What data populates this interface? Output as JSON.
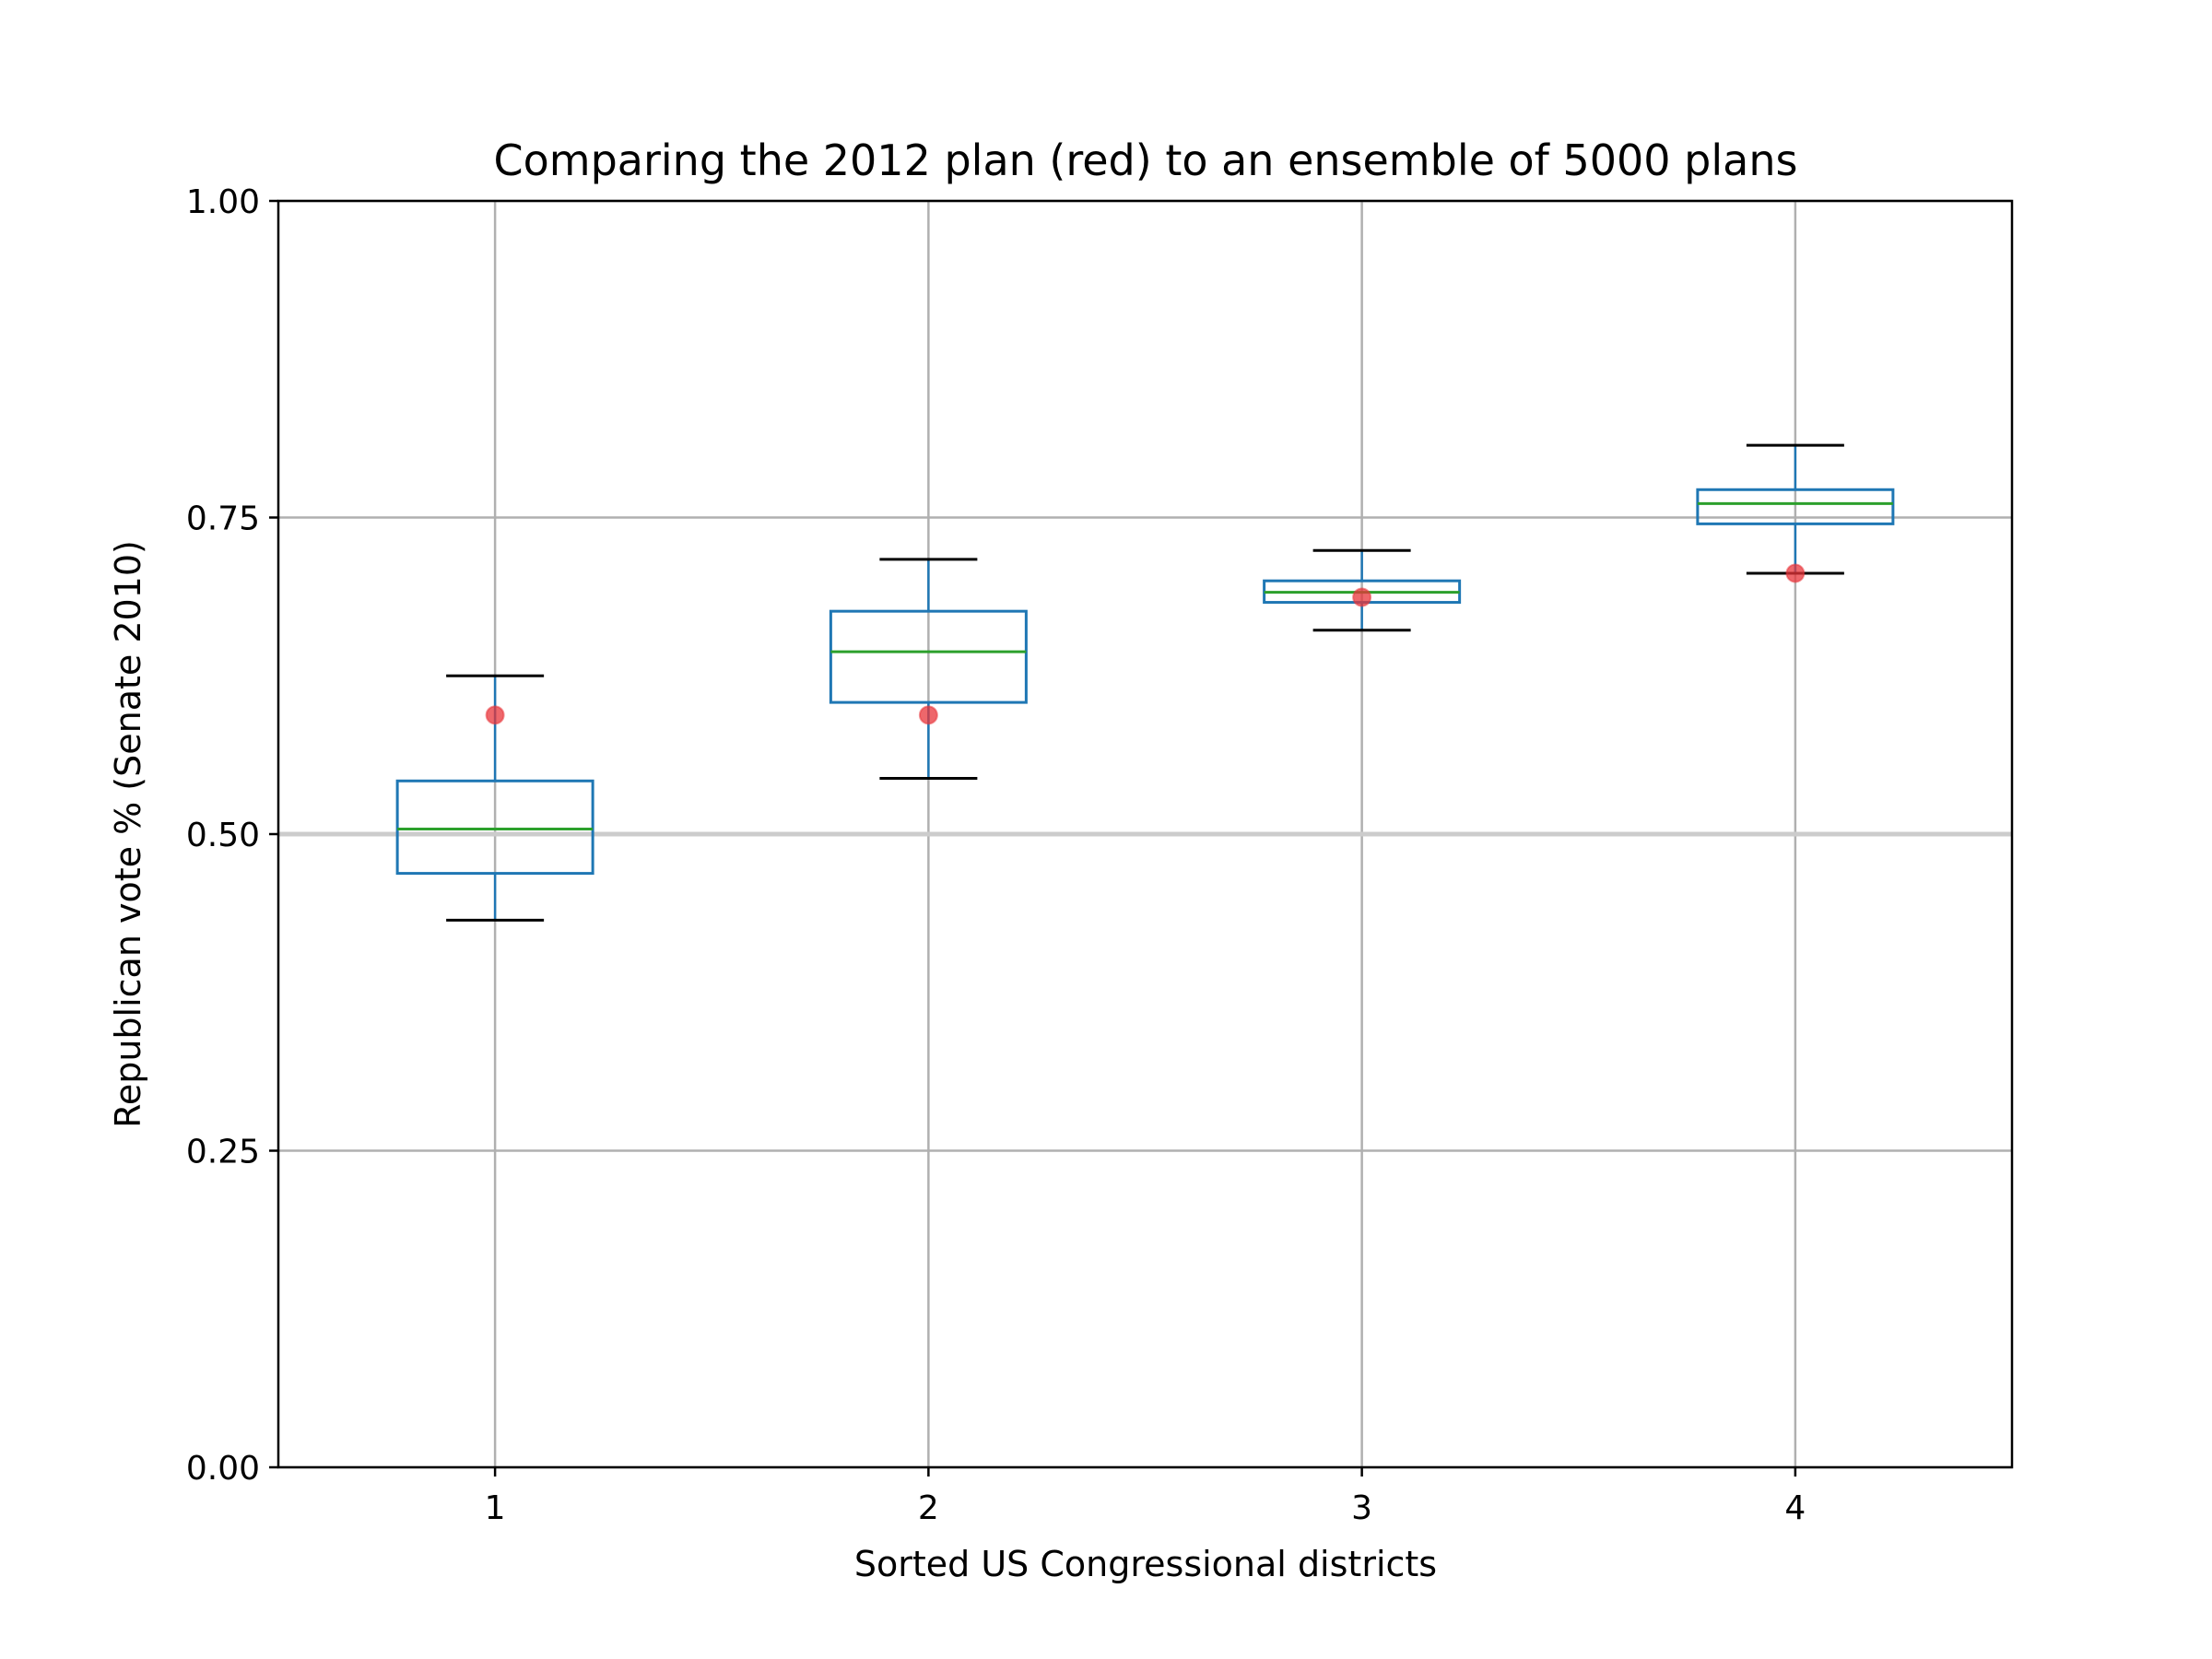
{
  "chart_data": {
    "type": "box",
    "title": "Comparing the 2012 plan (red) to an ensemble of 5000 plans",
    "xlabel": "Sorted US Congressional districts",
    "ylabel": "Republican vote % (Senate 2010)",
    "ylim": [
      0,
      1
    ],
    "yticks": [
      "0.00",
      "0.25",
      "0.50",
      "0.75",
      "1.00"
    ],
    "categories": [
      "1",
      "2",
      "3",
      "4"
    ],
    "grid": true,
    "reference_line": 0.5,
    "boxes": [
      {
        "category": "1",
        "whisker_low": 0.432,
        "q1": 0.469,
        "median": 0.504,
        "q3": 0.542,
        "whisker_high": 0.625
      },
      {
        "category": "2",
        "whisker_low": 0.544,
        "q1": 0.604,
        "median": 0.644,
        "q3": 0.676,
        "whisker_high": 0.717
      },
      {
        "category": "3",
        "whisker_low": 0.661,
        "q1": 0.683,
        "median": 0.691,
        "q3": 0.7,
        "whisker_high": 0.724
      },
      {
        "category": "4",
        "whisker_low": 0.706,
        "q1": 0.745,
        "median": 0.761,
        "q3": 0.772,
        "whisker_high": 0.807
      }
    ],
    "plan_2012": [
      0.594,
      0.594,
      0.687,
      0.706
    ],
    "colors": {
      "box": "#1f77b4",
      "median": "#2ca02c",
      "whisker": "#000000",
      "plan_2012": "#e8343a",
      "grid": "#b0b0b0",
      "reference_line": "#cccccc"
    }
  }
}
